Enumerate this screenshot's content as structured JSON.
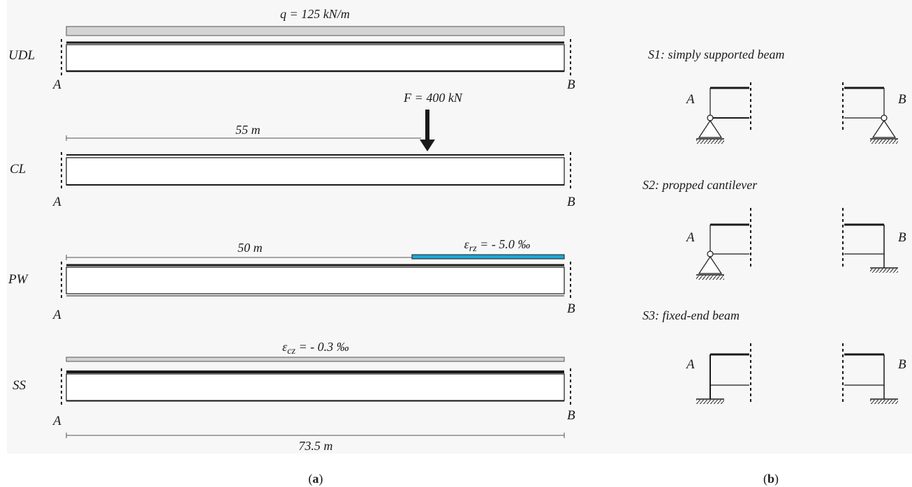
{
  "panel_a": {
    "support_left": "A",
    "support_right": "B",
    "rows": [
      {
        "label": "UDL",
        "load_label": "q = 125 kN/m"
      },
      {
        "label": "CL",
        "load_label": "F = 400 kN",
        "dim_label": "55 m"
      },
      {
        "label": "PW",
        "load_label_prefix": "ε",
        "load_label_sub": "rz",
        "load_label_value": " = - 5.0 ‰",
        "dim_label": "50 m"
      },
      {
        "label": "SS",
        "load_label_prefix": "ε",
        "load_label_sub": "cz",
        "load_label_value": " = - 0.3 ‰"
      }
    ],
    "span_label": "73.5 m"
  },
  "panel_b": {
    "schemes": [
      {
        "title": "S1:  simply supported beam",
        "left": "A",
        "right": "B"
      },
      {
        "title": "S2:  propped cantilever",
        "left": "A",
        "right": "B"
      },
      {
        "title": "S3:  fixed-end beam",
        "left": "A",
        "right": "B"
      }
    ]
  },
  "captions": {
    "a_open": "(",
    "a_letter": "a",
    "a_close": ")",
    "b_open": "(",
    "b_letter": "b",
    "b_close": ")"
  },
  "colors": {
    "udl_bar": "#d4d4d4",
    "prestress_bar": "#1fa8d8",
    "shrinkage_bar": "#d4d4d4",
    "line": "#1a1a1a"
  }
}
